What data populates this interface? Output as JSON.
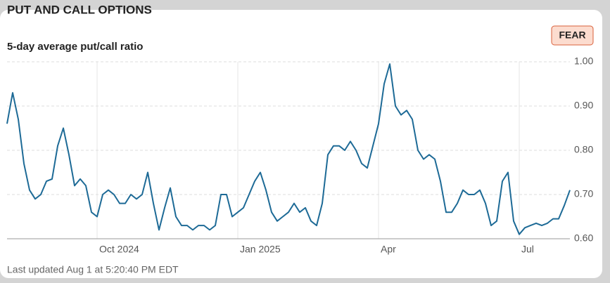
{
  "chart_data": {
    "type": "line",
    "title": "PUT AND CALL OPTIONS",
    "subtitle": "5-day average put/call ratio",
    "badge": "FEAR",
    "footer": "Last updated Aug 1 at 5:20:40 PM EDT",
    "categories": [
      null,
      null,
      null,
      null,
      null,
      null,
      null,
      null,
      null,
      null,
      null,
      null,
      null,
      null,
      null,
      null,
      "Oct 2024",
      null,
      null,
      null,
      null,
      null,
      null,
      null,
      null,
      null,
      null,
      null,
      null,
      null,
      null,
      null,
      null,
      null,
      null,
      null,
      null,
      null,
      null,
      null,
      null,
      "Jan 2025",
      null,
      null,
      null,
      null,
      null,
      null,
      null,
      null,
      null,
      null,
      null,
      null,
      null,
      null,
      null,
      null,
      null,
      null,
      null,
      null,
      null,
      null,
      null,
      null,
      "Apr",
      null,
      null,
      null,
      null,
      null,
      null,
      null,
      null,
      null,
      null,
      null,
      null,
      null,
      null,
      null,
      null,
      null,
      null,
      null,
      null,
      null,
      null,
      null,
      null,
      "Jul",
      null,
      null,
      null,
      null,
      null,
      null,
      null,
      null,
      null
    ],
    "series": [
      {
        "name": "5-day average put/call ratio",
        "color": "#1d6a96",
        "values": [
          0.86,
          0.93,
          0.87,
          0.77,
          0.71,
          0.69,
          0.7,
          0.73,
          0.735,
          0.81,
          0.85,
          0.79,
          0.72,
          0.735,
          0.72,
          0.66,
          0.65,
          0.7,
          0.71,
          0.7,
          0.68,
          0.68,
          0.7,
          0.69,
          0.7,
          0.75,
          0.68,
          0.62,
          0.67,
          0.715,
          0.65,
          0.63,
          0.63,
          0.62,
          0.63,
          0.63,
          0.62,
          0.63,
          0.7,
          0.7,
          0.65,
          0.66,
          0.67,
          0.7,
          0.73,
          0.75,
          0.71,
          0.66,
          0.64,
          0.65,
          0.66,
          0.68,
          0.66,
          0.67,
          0.64,
          0.63,
          0.68,
          0.79,
          0.81,
          0.81,
          0.8,
          0.82,
          0.8,
          0.77,
          0.76,
          0.81,
          0.86,
          0.95,
          0.995,
          0.9,
          0.88,
          0.89,
          0.87,
          0.8,
          0.78,
          0.79,
          0.78,
          0.73,
          0.66,
          0.66,
          0.68,
          0.71,
          0.7,
          0.7,
          0.71,
          0.68,
          0.63,
          0.64,
          0.73,
          0.75,
          0.64,
          0.61,
          0.625,
          0.63,
          0.635,
          0.63,
          0.635,
          0.645,
          0.645,
          0.675,
          0.71
        ]
      }
    ],
    "ylim": [
      0.6,
      1.0
    ],
    "yticks": [
      {
        "value": 0.6,
        "label": "0.60"
      },
      {
        "value": 0.7,
        "label": "0.70"
      },
      {
        "value": 0.8,
        "label": "0.80"
      },
      {
        "value": 0.9,
        "label": "0.90"
      },
      {
        "value": 1.0,
        "label": "1.00"
      }
    ],
    "grid": true
  }
}
